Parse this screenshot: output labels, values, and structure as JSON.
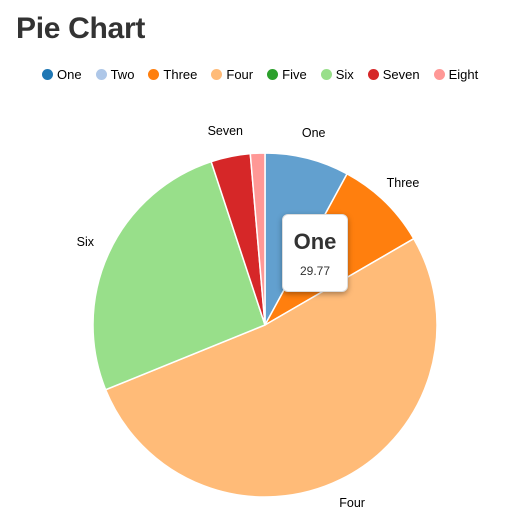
{
  "page": {
    "title": "Pie Chart"
  },
  "tooltip": {
    "label": "One",
    "value": "29.77"
  },
  "chart_data": {
    "type": "pie",
    "title": "Pie Chart",
    "legend_position": "top-left",
    "slices": [
      {
        "label": "One",
        "value": 29.77,
        "color": "#62a0cf",
        "legend_color": "#1f77b4",
        "show_label": true
      },
      {
        "label": "Two",
        "value": 0,
        "color": "#aec7e8",
        "legend_color": "#aec7e8",
        "show_label": false
      },
      {
        "label": "Three",
        "value": 32.8,
        "color": "#ff7f0e",
        "legend_color": "#ff7f0e",
        "show_label": true
      },
      {
        "label": "Four",
        "value": 196.45,
        "color": "#ffbb78",
        "legend_color": "#ffbb78",
        "show_label": true
      },
      {
        "label": "Five",
        "value": 0,
        "color": "#2ca02c",
        "legend_color": "#2ca02c",
        "show_label": false
      },
      {
        "label": "Six",
        "value": 98.08,
        "color": "#98df8a",
        "legend_color": "#98df8a",
        "show_label": true
      },
      {
        "label": "Seven",
        "value": 13.93,
        "color": "#d62728",
        "legend_color": "#d62728",
        "show_label": true
      },
      {
        "label": "Eight",
        "value": 5.13,
        "color": "#ff9896",
        "legend_color": "#ff9896",
        "show_label": false
      }
    ]
  }
}
